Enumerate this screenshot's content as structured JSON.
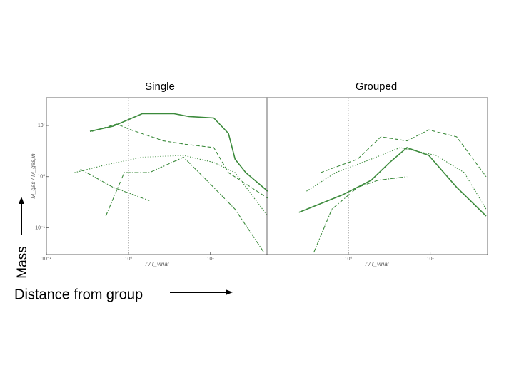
{
  "chart_data": [
    {
      "type": "line",
      "title": "Single",
      "x_label": "r / r_virial",
      "y_label": "M_gas / M_gas,in",
      "xlog": true,
      "ylog": true,
      "xlim": [
        0.1,
        50
      ],
      "ylim": [
        0.03,
        35
      ],
      "xticks": [
        {
          "value": 0.1,
          "label": "10⁻¹"
        },
        {
          "value": 1,
          "label": "10⁰"
        },
        {
          "value": 10,
          "label": "10¹"
        }
      ],
      "yticks": [
        {
          "value": 0.1,
          "label": "10⁻¹"
        },
        {
          "value": 1,
          "label": "10⁰"
        },
        {
          "value": 10,
          "label": "10¹"
        }
      ],
      "vline": 1,
      "series": [
        {
          "color": "#3b8a3b",
          "linestyle": "solid",
          "x": [
            0.34,
            0.65,
            1.47,
            3.6,
            5.5,
            11,
            16.6,
            20,
            27,
            50
          ],
          "values": [
            7.7,
            9.7,
            17,
            17,
            15,
            14,
            7,
            2.2,
            1.2,
            0.52
          ]
        },
        {
          "color": "#3b8a3b",
          "linestyle": "dashed",
          "x": [
            0.36,
            0.72,
            1.08,
            2.7,
            4.9,
            11,
            16.6,
            50
          ],
          "values": [
            7.7,
            10.7,
            8.2,
            5,
            4.3,
            3.7,
            1.2,
            0.38
          ]
        },
        {
          "color": "#3b8a3b",
          "linestyle": "dotted",
          "x": [
            0.22,
            0.53,
            1.47,
            4.7,
            11,
            20,
            50
          ],
          "values": [
            1.2,
            1.7,
            2.4,
            2.6,
            1.9,
            1.2,
            0.17
          ]
        },
        {
          "color": "#3b8a3b",
          "linestyle": "dashdot",
          "x": [
            0.53,
            0.89,
            1.8,
            4.7,
            9,
            20,
            45
          ],
          "values": [
            0.17,
            1.2,
            1.2,
            2.4,
            0.85,
            0.23,
            0.033
          ]
        },
        {
          "color": "#3b8a3b",
          "linestyle": "dashdot",
          "x": [
            0.26,
            0.65,
            1.8
          ],
          "values": [
            1.4,
            0.62,
            0.34
          ]
        }
      ]
    },
    {
      "type": "line",
      "title": "Grouped",
      "x_label": "r / r_virial",
      "xlog": true,
      "ylog": true,
      "xlim": [
        0.1,
        50
      ],
      "ylim": [
        0.03,
        35
      ],
      "xticks": [
        {
          "value": 1,
          "label": "10⁰"
        },
        {
          "value": 10,
          "label": "10¹"
        }
      ],
      "vline": 1,
      "series": [
        {
          "color": "#3b8a3b",
          "linestyle": "solid",
          "x": [
            0.25,
            0.85,
            1.9,
            3.2,
            5.2,
            9.6,
            21,
            48
          ],
          "values": [
            0.2,
            0.44,
            0.85,
            1.9,
            3.7,
            2.6,
            0.62,
            0.17
          ]
        },
        {
          "color": "#3b8a3b",
          "linestyle": "dashed",
          "x": [
            0.46,
            1.3,
            2.5,
            5.2,
            9.6,
            21,
            48
          ],
          "values": [
            1.2,
            2.2,
            6,
            5,
            8.2,
            6,
            1
          ]
        },
        {
          "color": "#3b8a3b",
          "linestyle": "dotted",
          "x": [
            0.31,
            0.7,
            1.9,
            4.3,
            11.8,
            26,
            48
          ],
          "values": [
            0.52,
            1.2,
            2.2,
            3.7,
            2.6,
            1.2,
            0.23
          ]
        },
        {
          "color": "#3b8a3b",
          "linestyle": "dashdot",
          "x": [
            0.38,
            0.63,
            1.3,
            2.3,
            5.2
          ],
          "values": [
            0.033,
            0.23,
            0.62,
            0.85,
            1
          ]
        }
      ]
    }
  ],
  "slide": {
    "y_label": "Mass",
    "x_label": "Distance from group"
  }
}
